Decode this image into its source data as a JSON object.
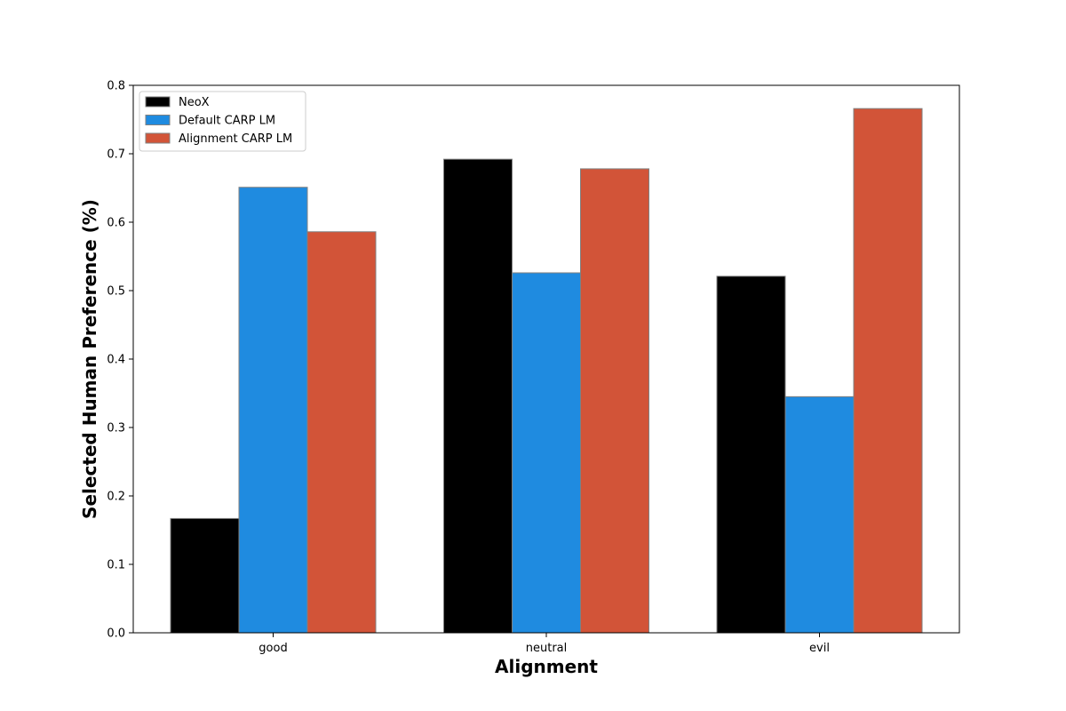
{
  "chart_data": {
    "type": "bar",
    "title": "",
    "xlabel": "Alignment",
    "ylabel": "Selected Human Preference (%)",
    "categories": [
      "good",
      "neutral",
      "evil"
    ],
    "ylim": [
      0,
      0.8
    ],
    "yticks": [
      "0.0",
      "0.1",
      "0.2",
      "0.3",
      "0.4",
      "0.5",
      "0.6",
      "0.7",
      "0.8"
    ],
    "grid": false,
    "legend_position": "top-left",
    "series": [
      {
        "name": "NeoX",
        "color": "#000000",
        "values": [
          0.167,
          0.692,
          0.521
        ]
      },
      {
        "name": "Default CARP LM",
        "color": "#1f8be0",
        "values": [
          0.651,
          0.526,
          0.345
        ]
      },
      {
        "name": "Alignment CARP LM",
        "color": "#d25438",
        "values": [
          0.586,
          0.678,
          0.766
        ]
      }
    ]
  }
}
